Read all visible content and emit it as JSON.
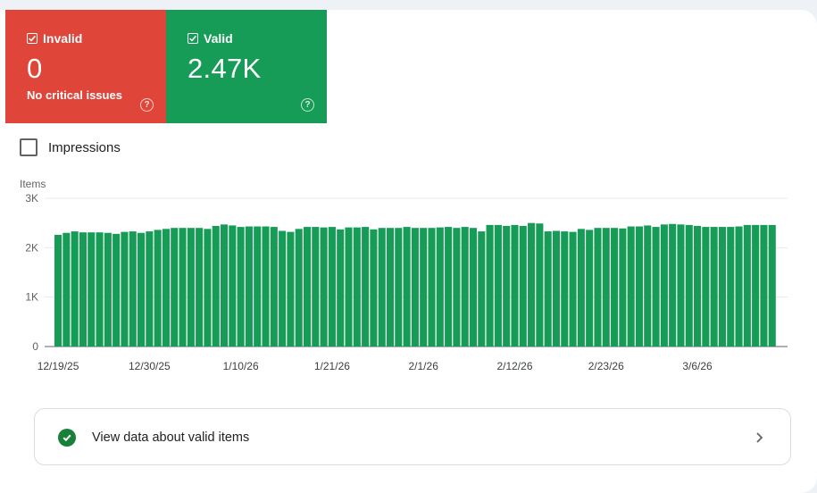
{
  "tiles": [
    {
      "label": "Invalid",
      "value": "0",
      "sub": "No critical issues",
      "color": "#e0453a"
    },
    {
      "label": "Valid",
      "value": "2.47K",
      "sub": "",
      "color": "#169c57"
    }
  ],
  "help_icon": "?",
  "impressions_label": "Impressions",
  "view_link": "View data about valid items",
  "chart_data": {
    "type": "bar",
    "ylabel": "Items",
    "ylim": [
      0,
      3000
    ],
    "yticks": [
      "0",
      "1K",
      "2K",
      "3K"
    ],
    "bar_color": "#169c57",
    "xtick_labels": [
      "12/19/25",
      "12/30/25",
      "1/10/26",
      "1/21/26",
      "2/1/26",
      "2/12/26",
      "2/23/26",
      "3/6/26"
    ],
    "categories": [
      "12/19/25",
      "12/20/25",
      "12/21/25",
      "12/22/25",
      "12/23/25",
      "12/24/25",
      "12/25/25",
      "12/26/25",
      "12/27/25",
      "12/28/25",
      "12/29/25",
      "12/30/25",
      "12/31/25",
      "1/1/26",
      "1/2/26",
      "1/3/26",
      "1/4/26",
      "1/5/26",
      "1/6/26",
      "1/7/26",
      "1/8/26",
      "1/9/26",
      "1/10/26",
      "1/11/26",
      "1/12/26",
      "1/13/26",
      "1/14/26",
      "1/15/26",
      "1/16/26",
      "1/17/26",
      "1/18/26",
      "1/19/26",
      "1/20/26",
      "1/21/26",
      "1/22/26",
      "1/23/26",
      "1/24/26",
      "1/25/26",
      "1/26/26",
      "1/27/26",
      "1/28/26",
      "1/29/26",
      "1/30/26",
      "1/31/26",
      "2/1/26",
      "2/2/26",
      "2/3/26",
      "2/4/26",
      "2/5/26",
      "2/6/26",
      "2/7/26",
      "2/8/26",
      "2/9/26",
      "2/10/26",
      "2/11/26",
      "2/12/26",
      "2/13/26",
      "2/14/26",
      "2/15/26",
      "2/16/26",
      "2/17/26",
      "2/18/26",
      "2/19/26",
      "2/20/26",
      "2/21/26",
      "2/22/26",
      "2/23/26",
      "2/24/26",
      "2/25/26",
      "2/26/26",
      "2/27/26",
      "2/28/26",
      "3/1/26",
      "3/2/26",
      "3/3/26",
      "3/4/26",
      "3/5/26",
      "3/6/26",
      "3/7/26",
      "3/8/26",
      "3/9/26",
      "3/10/26",
      "3/11/26",
      "3/12/26",
      "3/13/26",
      "3/14/26",
      "3/15/26"
    ],
    "values": [
      2260,
      2300,
      2330,
      2310,
      2310,
      2310,
      2300,
      2280,
      2320,
      2330,
      2300,
      2330,
      2360,
      2380,
      2400,
      2400,
      2400,
      2400,
      2380,
      2440,
      2470,
      2450,
      2420,
      2430,
      2430,
      2430,
      2420,
      2340,
      2320,
      2380,
      2420,
      2420,
      2410,
      2420,
      2370,
      2410,
      2410,
      2420,
      2370,
      2400,
      2400,
      2400,
      2420,
      2400,
      2400,
      2400,
      2410,
      2420,
      2400,
      2420,
      2400,
      2330,
      2460,
      2460,
      2440,
      2460,
      2440,
      2500,
      2490,
      2330,
      2340,
      2330,
      2320,
      2380,
      2360,
      2400,
      2400,
      2400,
      2390,
      2430,
      2430,
      2450,
      2420,
      2470,
      2480,
      2470,
      2460,
      2440,
      2420,
      2420,
      2420,
      2420,
      2430,
      2460,
      2460,
      2460,
      2460
    ]
  }
}
